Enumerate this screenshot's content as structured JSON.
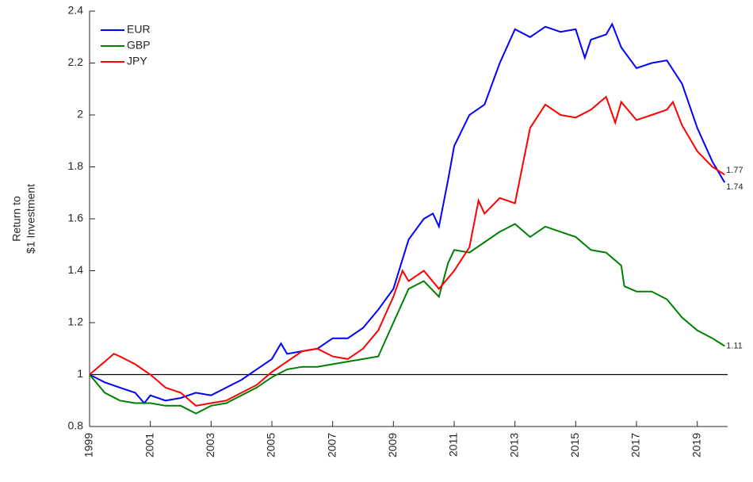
{
  "chart_data": {
    "type": "line",
    "ylabel": [
      "Return to",
      "$1 Investment"
    ],
    "xlim": [
      1999,
      2020
    ],
    "xticks": [
      1999,
      2001,
      2003,
      2005,
      2007,
      2009,
      2011,
      2013,
      2015,
      2017,
      2019
    ],
    "ylim": [
      0.8,
      2.4
    ],
    "yticks": [
      0.8,
      1,
      1.2,
      1.4,
      1.6,
      1.8,
      2,
      2.2,
      2.4
    ],
    "reference_line": 1,
    "grid": false,
    "legend": "top-left",
    "series": [
      {
        "name": "EUR",
        "color": "#0000ff",
        "x": [
          1999.0,
          1999.5,
          2000.0,
          2000.5,
          2000.8,
          2001.0,
          2001.5,
          2002.0,
          2002.5,
          2003.0,
          2003.5,
          2004.0,
          2004.5,
          2005.0,
          2005.3,
          2005.5,
          2006.0,
          2006.5,
          2007.0,
          2007.5,
          2008.0,
          2008.5,
          2009.0,
          2009.5,
          2010.0,
          2010.3,
          2010.5,
          2010.8,
          2011.0,
          2011.5,
          2012.0,
          2012.5,
          2013.0,
          2013.5,
          2014.0,
          2014.5,
          2015.0,
          2015.3,
          2015.5,
          2016.0,
          2016.2,
          2016.5,
          2017.0,
          2017.5,
          2018.0,
          2018.5,
          2019.0,
          2019.5,
          2019.9
        ],
        "values": [
          1.0,
          0.97,
          0.95,
          0.93,
          0.89,
          0.92,
          0.9,
          0.91,
          0.93,
          0.92,
          0.95,
          0.98,
          1.02,
          1.06,
          1.12,
          1.08,
          1.09,
          1.1,
          1.14,
          1.14,
          1.18,
          1.25,
          1.33,
          1.52,
          1.6,
          1.62,
          1.57,
          1.75,
          1.88,
          2.0,
          2.04,
          2.2,
          2.33,
          2.3,
          2.34,
          2.32,
          2.33,
          2.22,
          2.29,
          2.31,
          2.35,
          2.26,
          2.18,
          2.2,
          2.21,
          2.12,
          1.95,
          1.82,
          1.74
        ]
      },
      {
        "name": "GBP",
        "color": "#008000",
        "x": [
          1999.0,
          1999.5,
          2000.0,
          2000.5,
          2001.0,
          2001.5,
          2002.0,
          2002.5,
          2003.0,
          2003.5,
          2004.0,
          2004.5,
          2005.0,
          2005.5,
          2006.0,
          2006.5,
          2007.0,
          2007.5,
          2008.0,
          2008.5,
          2009.0,
          2009.5,
          2010.0,
          2010.5,
          2010.8,
          2011.0,
          2011.5,
          2012.0,
          2012.5,
          2013.0,
          2013.5,
          2014.0,
          2014.5,
          2015.0,
          2015.5,
          2016.0,
          2016.5,
          2016.6,
          2017.0,
          2017.5,
          2018.0,
          2018.5,
          2019.0,
          2019.5,
          2019.9
        ],
        "values": [
          1.0,
          0.93,
          0.9,
          0.89,
          0.89,
          0.88,
          0.88,
          0.85,
          0.88,
          0.89,
          0.92,
          0.95,
          0.99,
          1.02,
          1.03,
          1.03,
          1.04,
          1.05,
          1.06,
          1.07,
          1.2,
          1.33,
          1.36,
          1.3,
          1.43,
          1.48,
          1.47,
          1.51,
          1.55,
          1.58,
          1.53,
          1.57,
          1.55,
          1.53,
          1.48,
          1.47,
          1.42,
          1.34,
          1.32,
          1.32,
          1.29,
          1.22,
          1.17,
          1.14,
          1.11
        ]
      },
      {
        "name": "JPY",
        "color": "#ff0000",
        "x": [
          1999.0,
          1999.5,
          1999.8,
          2000.0,
          2000.5,
          2001.0,
          2001.5,
          2002.0,
          2002.5,
          2003.0,
          2003.5,
          2004.0,
          2004.5,
          2005.0,
          2005.5,
          2006.0,
          2006.5,
          2007.0,
          2007.5,
          2008.0,
          2008.5,
          2009.0,
          2009.3,
          2009.5,
          2010.0,
          2010.5,
          2011.0,
          2011.5,
          2011.8,
          2012.0,
          2012.5,
          2013.0,
          2013.5,
          2014.0,
          2014.5,
          2015.0,
          2015.5,
          2016.0,
          2016.3,
          2016.5,
          2017.0,
          2017.5,
          2018.0,
          2018.2,
          2018.5,
          2019.0,
          2019.5,
          2019.9
        ],
        "values": [
          1.0,
          1.05,
          1.08,
          1.07,
          1.04,
          1.0,
          0.95,
          0.93,
          0.88,
          0.89,
          0.9,
          0.93,
          0.96,
          1.01,
          1.05,
          1.09,
          1.1,
          1.07,
          1.06,
          1.1,
          1.17,
          1.3,
          1.4,
          1.36,
          1.4,
          1.33,
          1.4,
          1.49,
          1.67,
          1.62,
          1.68,
          1.66,
          1.95,
          2.04,
          2.0,
          1.99,
          2.02,
          2.07,
          1.97,
          2.05,
          1.98,
          2.0,
          2.02,
          2.05,
          1.96,
          1.86,
          1.8,
          1.77
        ]
      }
    ]
  }
}
